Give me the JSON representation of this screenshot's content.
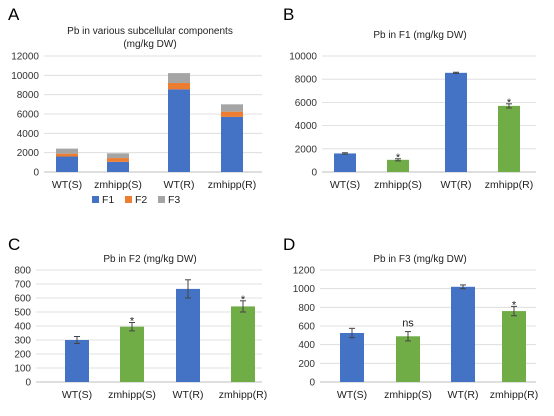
{
  "colors": {
    "F1": "#4472C4",
    "F2": "#ED7D31",
    "F3": "#A5A5A5",
    "mutant": "#70AD47"
  },
  "chart_data": [
    {
      "id": "A",
      "type": "bar",
      "stacked": true,
      "panel_letter": "A",
      "title": "Pb in various subcellular components",
      "subtitle": "(mg/kg DW)",
      "categories": [
        "WT(S)",
        "zmhipp(S)",
        "WT(R)",
        "zmhipp(R)"
      ],
      "series": [
        {
          "name": "F1",
          "values": [
            1600,
            1050,
            8550,
            5700
          ],
          "color": "#4472C4"
        },
        {
          "name": "F2",
          "values": [
            300,
            390,
            660,
            540
          ],
          "color": "#ED7D31"
        },
        {
          "name": "F3",
          "values": [
            520,
            490,
            1020,
            760
          ],
          "color": "#A5A5A5"
        }
      ],
      "ylim": [
        0,
        12000
      ],
      "yticks": [
        0,
        2000,
        4000,
        6000,
        8000,
        10000,
        12000
      ],
      "legend_position": "bottom"
    },
    {
      "id": "B",
      "type": "bar",
      "panel_letter": "B",
      "title": "Pb in F1 (mg/kg DW)",
      "categories": [
        "WT(S)",
        "zmhipp(S)",
        "WT(R)",
        "zmhipp(R)"
      ],
      "values": [
        1600,
        1050,
        8550,
        5700
      ],
      "errors": [
        60,
        90,
        50,
        180
      ],
      "significance": [
        "",
        "*",
        "",
        "*"
      ],
      "bar_colors": [
        "#4472C4",
        "#70AD47",
        "#4472C4",
        "#70AD47"
      ],
      "ylim": [
        0,
        10000
      ],
      "yticks": [
        0,
        2000,
        4000,
        6000,
        8000,
        10000
      ]
    },
    {
      "id": "C",
      "type": "bar",
      "panel_letter": "C",
      "title": "Pb in F2 (mg/kg DW)",
      "categories": [
        "WT(S)",
        "zmhipp(S)",
        "WT(R)",
        "zmhipp(R)"
      ],
      "values": [
        300,
        395,
        665,
        540
      ],
      "errors": [
        25,
        30,
        65,
        40
      ],
      "significance": [
        "",
        "*",
        "",
        "*"
      ],
      "bar_colors": [
        "#4472C4",
        "#70AD47",
        "#4472C4",
        "#70AD47"
      ],
      "ylim": [
        0,
        800
      ],
      "yticks": [
        0,
        100,
        200,
        300,
        400,
        500,
        600,
        700,
        800
      ]
    },
    {
      "id": "D",
      "type": "bar",
      "panel_letter": "D",
      "title": "Pb in F3 (mg/kg DW)",
      "categories": [
        "WT(S)",
        "zmhipp(S)",
        "WT(R)",
        "zmhipp(R)"
      ],
      "values": [
        525,
        490,
        1020,
        760
      ],
      "errors": [
        50,
        50,
        20,
        50
      ],
      "significance": [
        "",
        "ns",
        "",
        "*"
      ],
      "bar_colors": [
        "#4472C4",
        "#70AD47",
        "#4472C4",
        "#70AD47"
      ],
      "ylim": [
        0,
        1200
      ],
      "yticks": [
        0,
        200,
        400,
        600,
        800,
        1000,
        1200
      ]
    }
  ]
}
